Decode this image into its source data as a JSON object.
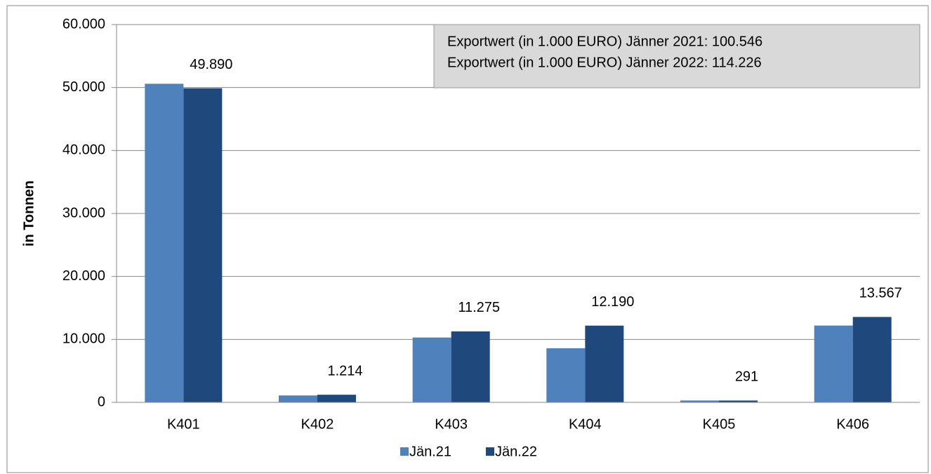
{
  "chart_data": {
    "type": "bar",
    "y_axis_label": "in Tonnen",
    "annotations": [
      "Exportwert (in 1.000 EURO) Jänner 2021: 100.546",
      "Exportwert (in 1.000 EURO) Jänner 2022: 114.226"
    ],
    "categories": [
      "K401",
      "K402",
      "K403",
      "K404",
      "K405",
      "K406"
    ],
    "series": [
      {
        "name": "Jän.21",
        "color": "#4f81bd",
        "values": [
          50600,
          1100,
          10300,
          8600,
          300,
          12200
        ]
      },
      {
        "name": "Jän.22",
        "color": "#1f497d",
        "values": [
          49890,
          1214,
          11275,
          12190,
          291,
          13567
        ],
        "value_labels": [
          "49.890",
          "1.214",
          "11.275",
          "12.190",
          "291",
          "13.567"
        ]
      }
    ],
    "ylim": [
      0,
      60000
    ],
    "yticks": [
      0,
      {
        "value": 10000,
        "label": "10.000"
      },
      {
        "value": 20000,
        "label": "20.000"
      },
      {
        "value": 30000,
        "label": "30.000"
      },
      {
        "value": 40000,
        "label": "40.000"
      },
      {
        "value": 50000,
        "label": "50.000"
      },
      {
        "value": 60000,
        "label": "60.000"
      }
    ],
    "grid": true,
    "legend": "bottom"
  }
}
